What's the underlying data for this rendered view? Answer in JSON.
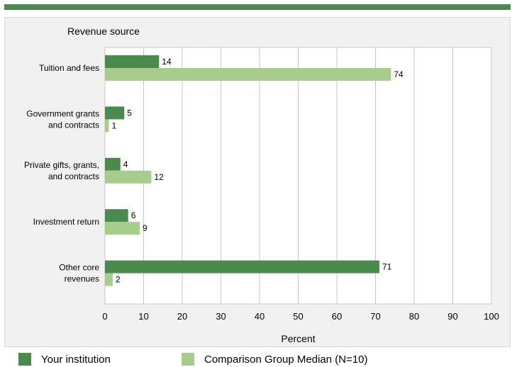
{
  "colors": {
    "accent": "#4a8a4c",
    "your_institution": "#4a8a4c",
    "comparison_group": "#a8cc8c",
    "grid": "#c8c8c8"
  },
  "chart_data": {
    "type": "bar",
    "orientation": "horizontal",
    "ylabel": "Revenue source",
    "xlabel": "Percent",
    "xlim": [
      0,
      100
    ],
    "xticks": [
      0,
      10,
      20,
      30,
      40,
      50,
      60,
      70,
      80,
      90,
      100
    ],
    "grid": true,
    "legend_position": "bottom",
    "categories": [
      [
        "Tuition and fees"
      ],
      [
        "Government grants",
        "and contracts"
      ],
      [
        "Private gifts, grants,",
        "and contracts"
      ],
      [
        "Investment return"
      ],
      [
        "Other core",
        "revenues"
      ]
    ],
    "series": [
      {
        "name": "Your institution",
        "color": "#4a8a4c",
        "values": [
          14,
          5,
          4,
          6,
          71
        ]
      },
      {
        "name": "Comparison Group Median (N=10)",
        "color": "#a8cc8c",
        "values": [
          74,
          1,
          12,
          9,
          2
        ]
      }
    ]
  }
}
